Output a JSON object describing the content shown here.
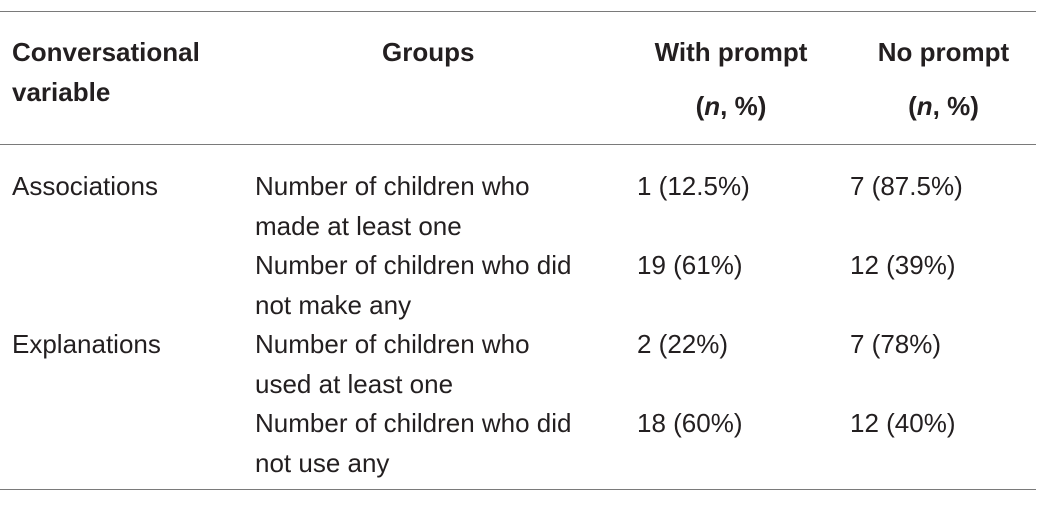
{
  "table": {
    "headers": {
      "variable_line1": "Conversational",
      "variable_line2": "variable",
      "groups": "Groups",
      "with_prompt": "With prompt",
      "no_prompt": "No prompt",
      "n_open": "(",
      "n_letter": "n",
      "n_close": ", %)"
    },
    "rows": [
      {
        "variable": "Associations",
        "group_line1": "Number of children who",
        "group_line2": "made at least one",
        "with_prompt": "1 (12.5%)",
        "no_prompt": "7 (87.5%)"
      },
      {
        "variable": "",
        "group_line1": "Number of children who did",
        "group_line2": "not make any",
        "with_prompt": "19 (61%)",
        "no_prompt": "12 (39%)"
      },
      {
        "variable": "Explanations",
        "group_line1": "Number of children who",
        "group_line2": "used at least one",
        "with_prompt": "2 (22%)",
        "no_prompt": "7 (78%)"
      },
      {
        "variable": "",
        "group_line1": "Number of children who did",
        "group_line2": "not use any",
        "with_prompt": "18 (60%)",
        "no_prompt": "12 (40%)"
      }
    ]
  }
}
